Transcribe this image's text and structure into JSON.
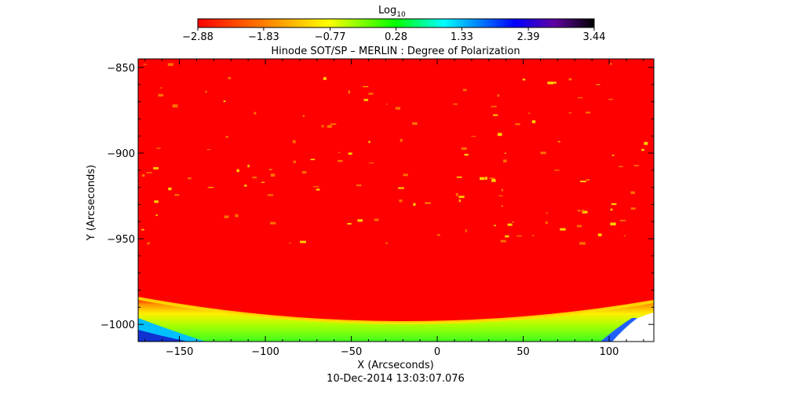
{
  "chart_data": {
    "type": "heatmap",
    "title": "Hinode SOT/SP – MERLIN : Degree of Polarization",
    "xlabel": "X (Arcseconds)",
    "ylabel": "Y (Arcseconds)",
    "xlim": [
      -174,
      126
    ],
    "ylim": [
      -1010,
      -845
    ],
    "xticks": [
      -150,
      -100,
      -50,
      0,
      50,
      100
    ],
    "xtick_labels": [
      "−150",
      "−100",
      "−50",
      "0",
      "50",
      "100"
    ],
    "yticks": [
      -850,
      -900,
      -950,
      -1000
    ],
    "ytick_labels": [
      "−850",
      "−900",
      "−950",
      "−1000"
    ],
    "timestamp": "10-Dec-2014 13:03:07.076",
    "colorbar": {
      "label_base": "Log",
      "label_sub": "10",
      "range": [
        -2.88,
        3.44
      ],
      "ticks": [
        -2.88,
        -1.83,
        -0.77,
        0.28,
        1.33,
        2.39,
        3.44
      ],
      "tick_labels": [
        "−2.88",
        "−1.83",
        "−0.77",
        "0.28",
        "1.33",
        "2.39",
        "3.44"
      ],
      "colormap": [
        "#ff0000",
        "#ff8000",
        "#ffff00",
        "#00ff00",
        "#00ffff",
        "#0000ff",
        "#000000"
      ]
    },
    "background_value_color": "#ff0000",
    "limb_band_colors": [
      "#ff4000",
      "#ffcc00",
      "#99ff00",
      "#00ff40"
    ]
  }
}
